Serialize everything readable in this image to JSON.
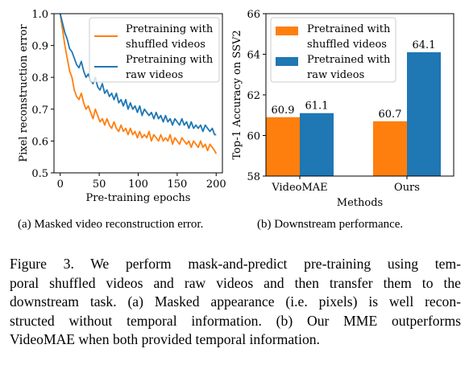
{
  "chart_data": [
    {
      "type": "line",
      "xlabel": "Pre-training epochs",
      "ylabel": "Pixel reconstruction error",
      "xlim": [
        -8,
        208
      ],
      "ylim": [
        0.5,
        1.0
      ],
      "xticks": [
        "0",
        "50",
        "100",
        "150",
        "200"
      ],
      "yticks": [
        "0.5",
        "0.6",
        "0.7",
        "0.8",
        "0.9",
        "1.0"
      ],
      "legend_position": "top-right",
      "grid": false,
      "series": [
        {
          "name": "Pretraining with shuffled videos",
          "color": "#ff7f0e",
          "x": [
            0,
            3,
            6,
            9,
            12,
            15,
            18,
            21,
            24,
            27,
            30,
            33,
            36,
            39,
            42,
            45,
            48,
            51,
            54,
            57,
            60,
            63,
            66,
            69,
            72,
            75,
            78,
            81,
            84,
            87,
            90,
            93,
            96,
            99,
            102,
            105,
            108,
            111,
            114,
            117,
            120,
            123,
            126,
            129,
            132,
            135,
            138,
            141,
            144,
            147,
            150,
            153,
            156,
            159,
            162,
            165,
            168,
            171,
            174,
            177,
            180,
            183,
            186,
            189,
            192,
            195,
            198,
            200
          ],
          "y": [
            1.0,
            0.95,
            0.9,
            0.86,
            0.82,
            0.8,
            0.76,
            0.74,
            0.73,
            0.75,
            0.72,
            0.7,
            0.71,
            0.69,
            0.67,
            0.7,
            0.68,
            0.66,
            0.67,
            0.65,
            0.67,
            0.65,
            0.64,
            0.66,
            0.64,
            0.63,
            0.65,
            0.63,
            0.64,
            0.62,
            0.64,
            0.62,
            0.63,
            0.61,
            0.63,
            0.61,
            0.62,
            0.61,
            0.63,
            0.6,
            0.62,
            0.61,
            0.6,
            0.62,
            0.6,
            0.61,
            0.6,
            0.62,
            0.59,
            0.61,
            0.6,
            0.59,
            0.61,
            0.6,
            0.59,
            0.6,
            0.58,
            0.6,
            0.59,
            0.58,
            0.6,
            0.58,
            0.59,
            0.57,
            0.59,
            0.58,
            0.57,
            0.56
          ]
        },
        {
          "name": "Pretraining with raw videos",
          "color": "#1f77b4",
          "x": [
            0,
            3,
            6,
            9,
            12,
            15,
            18,
            21,
            24,
            27,
            30,
            33,
            36,
            39,
            42,
            45,
            48,
            51,
            54,
            57,
            60,
            63,
            66,
            69,
            72,
            75,
            78,
            81,
            84,
            87,
            90,
            93,
            96,
            99,
            102,
            105,
            108,
            111,
            114,
            117,
            120,
            123,
            126,
            129,
            132,
            135,
            138,
            141,
            144,
            147,
            150,
            153,
            156,
            159,
            162,
            165,
            168,
            171,
            174,
            177,
            180,
            183,
            186,
            189,
            192,
            195,
            198,
            200
          ],
          "y": [
            1.0,
            0.97,
            0.94,
            0.92,
            0.89,
            0.88,
            0.86,
            0.84,
            0.83,
            0.85,
            0.82,
            0.8,
            0.81,
            0.79,
            0.78,
            0.8,
            0.77,
            0.76,
            0.78,
            0.75,
            0.76,
            0.74,
            0.75,
            0.73,
            0.75,
            0.72,
            0.73,
            0.71,
            0.73,
            0.7,
            0.72,
            0.7,
            0.71,
            0.69,
            0.71,
            0.68,
            0.7,
            0.69,
            0.68,
            0.69,
            0.67,
            0.69,
            0.67,
            0.68,
            0.66,
            0.68,
            0.66,
            0.67,
            0.65,
            0.67,
            0.66,
            0.65,
            0.67,
            0.65,
            0.66,
            0.64,
            0.66,
            0.64,
            0.65,
            0.64,
            0.65,
            0.63,
            0.65,
            0.64,
            0.63,
            0.64,
            0.62,
            0.62
          ]
        }
      ]
    },
    {
      "type": "bar",
      "xlabel": "Methods",
      "ylabel": "Top-1 Accuracy on SSV2",
      "categories": [
        "VideoMAE",
        "Ours"
      ],
      "ylim": [
        58,
        66
      ],
      "yticks": [
        "58",
        "60",
        "62",
        "64",
        "66"
      ],
      "legend_position": "top-left",
      "grid": false,
      "series": [
        {
          "name": "Pretrained with shuffled videos",
          "color": "#ff7f0e",
          "values": [
            60.9,
            60.7
          ],
          "labels": [
            "60.9",
            "60.7"
          ]
        },
        {
          "name": "Pretrained with raw videos",
          "color": "#1f77b4",
          "values": [
            61.1,
            64.1
          ],
          "labels": [
            "61.1",
            "64.1"
          ]
        }
      ]
    }
  ],
  "subcaptions": {
    "a": "(a) Masked video reconstruction error.",
    "b": "(b) Downstream performance."
  },
  "caption_lines": [
    "Figure 3.  We perform mask-and-predict pre-training using tem-",
    "poral shuffled videos and raw videos and then transfer them to the",
    "downstream task. (a) Masked appearance (i.e. pixels) is well recon-",
    "structed without temporal information. (b) Our MME outperforms",
    "VideoMAE when both provided temporal information."
  ]
}
